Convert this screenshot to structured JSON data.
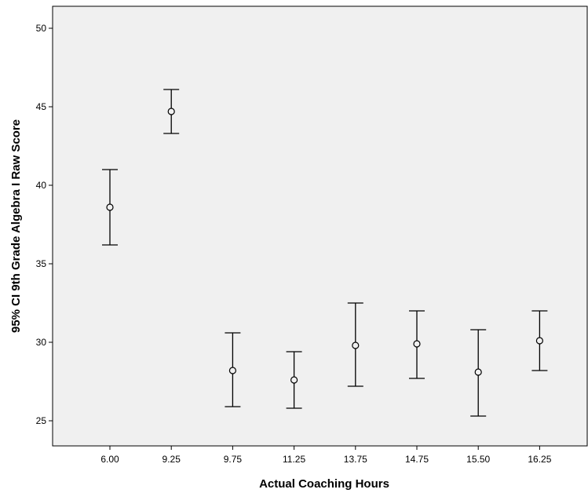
{
  "chart_data": {
    "type": "errorbar",
    "title": "",
    "xlabel": "Actual Coaching Hours",
    "ylabel": "95% CI 9th Grade Algebra I Raw Score",
    "categories": [
      "6.00",
      "9.25",
      "9.75",
      "11.25",
      "13.75",
      "14.75",
      "15.50",
      "16.25"
    ],
    "series": [
      {
        "means": [
          38.6,
          44.7,
          28.2,
          27.6,
          29.8,
          29.9,
          28.1,
          30.1
        ],
        "lower": [
          36.2,
          43.3,
          25.9,
          25.8,
          27.2,
          27.7,
          25.3,
          28.2
        ],
        "upper": [
          41.0,
          46.1,
          30.6,
          29.4,
          32.5,
          32.0,
          30.8,
          32.0
        ]
      }
    ],
    "yticks": [
      25,
      30,
      35,
      40,
      45,
      50
    ],
    "ylim": [
      23.4,
      51.4
    ],
    "grid": false,
    "plot_background": "#f0f0f0",
    "marker": "open-circle",
    "line_color": "#000000"
  }
}
